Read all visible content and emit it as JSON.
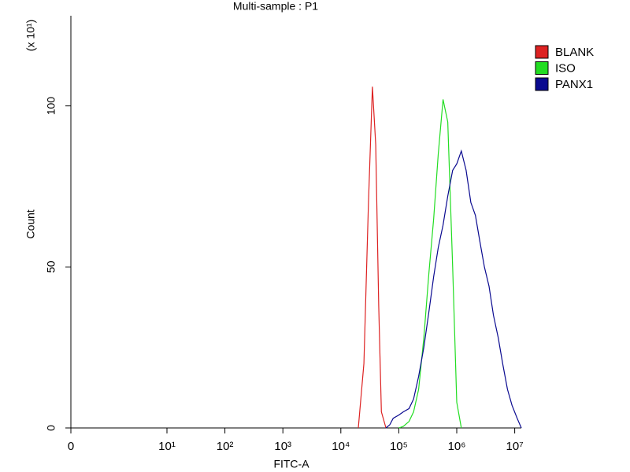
{
  "chart_data": {
    "type": "line",
    "title": "Multi-sample : P1",
    "xlabel": "FITC-A",
    "ylabel": "Count",
    "ylabel_unit": "(x 10¹)",
    "xscale": "symlog",
    "x": [
      20000,
      25000,
      30000,
      35000,
      40000,
      45000,
      50000,
      60000,
      70000,
      80000,
      100000,
      120000,
      150000,
      180000,
      220000,
      270000,
      330000,
      400000,
      480000,
      580000,
      700000,
      850000,
      1000000,
      1200000,
      1450000,
      1750000,
      2100000,
      2500000,
      3000000,
      3600000,
      4300000,
      5200000,
      6200000,
      7500000,
      9000000,
      11000000,
      13000000
    ],
    "series": [
      {
        "name": "BLANK",
        "color": "#dd2222",
        "values": [
          0,
          20,
          70,
          106,
          88,
          38,
          5,
          0,
          null,
          null,
          null,
          null,
          null,
          null,
          null,
          null,
          null,
          null,
          null,
          null,
          null,
          null,
          null,
          null,
          null,
          null,
          null,
          null,
          null,
          null,
          null,
          null,
          null,
          null,
          null,
          null,
          null
        ]
      },
      {
        "name": "ISO",
        "color": "#22dd22",
        "values": [
          null,
          null,
          null,
          null,
          null,
          null,
          null,
          null,
          null,
          null,
          0,
          0.5,
          2,
          5,
          12,
          28,
          48,
          65,
          85,
          102,
          95,
          50,
          8,
          0,
          null,
          null,
          null,
          null,
          null,
          null,
          null,
          null,
          null,
          null,
          null,
          null,
          null
        ]
      },
      {
        "name": "PANX1",
        "color": "#0a0a90",
        "values": [
          null,
          null,
          null,
          null,
          null,
          null,
          null,
          0,
          1,
          3,
          4,
          5,
          6,
          9,
          16,
          25,
          36,
          47,
          56,
          63,
          72,
          80,
          82,
          86,
          80,
          70,
          66,
          58,
          50,
          44,
          35,
          28,
          20,
          12,
          7,
          3,
          0
        ]
      }
    ],
    "xlim": [
      0,
      13000000
    ],
    "xticks": [
      0,
      {
        "value": 10,
        "label": "10¹"
      },
      {
        "value": 100,
        "label": "10²"
      },
      {
        "value": 1000,
        "label": "10³"
      },
      {
        "value": 10000,
        "label": "10⁴"
      },
      {
        "value": 100000,
        "label": "10⁵"
      },
      {
        "value": 1000000,
        "label": "10⁶"
      },
      {
        "value": 10000000,
        "label": "10⁷"
      }
    ],
    "ylim": [
      0,
      128
    ],
    "yticks": [
      0,
      50,
      100
    ],
    "legend": "upper right"
  }
}
